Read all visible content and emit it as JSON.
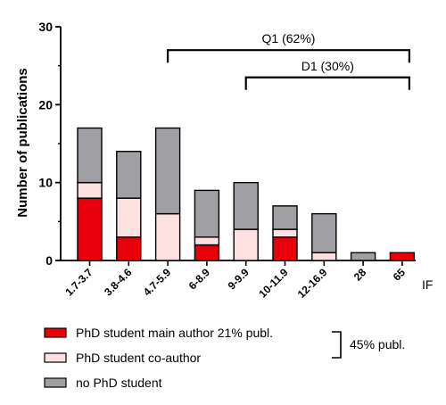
{
  "chart_data": {
    "type": "bar",
    "stacked": true,
    "ylabel": "Number of publications",
    "xlabel": "IF",
    "ylim": [
      0,
      30
    ],
    "yticks": [
      "0",
      "10",
      "20",
      "30"
    ],
    "categories": [
      "1.7-3.7",
      "3.8-4.6",
      "4.7-5.9",
      "6-8.9",
      "9-9.9",
      "10-11.9",
      "12-16.9",
      "28",
      "65"
    ],
    "series": [
      {
        "name": "PhD student main author 21% publ.",
        "color": "#e8000b",
        "values": [
          8,
          3,
          0,
          2,
          0,
          3,
          0,
          0,
          1
        ]
      },
      {
        "name": "PhD student co-author",
        "color": "#fde0e0",
        "values": [
          2,
          5,
          6,
          1,
          4,
          1,
          1,
          0,
          0
        ]
      },
      {
        "name": "no PhD student",
        "color": "#a0a0a4",
        "values": [
          7,
          6,
          11,
          6,
          6,
          3,
          5,
          1,
          0
        ]
      }
    ],
    "brackets": [
      {
        "label": "Q1 (62%)",
        "from": "4.7-5.9",
        "to": "65",
        "level": 27
      },
      {
        "label": "D1 (30%)",
        "from": "9-9.9",
        "to": "65",
        "level": 23.5
      }
    ],
    "legend_group": {
      "label": "45% publ.",
      "covers": [
        0,
        1
      ]
    },
    "legend_position": "bottom-left"
  }
}
